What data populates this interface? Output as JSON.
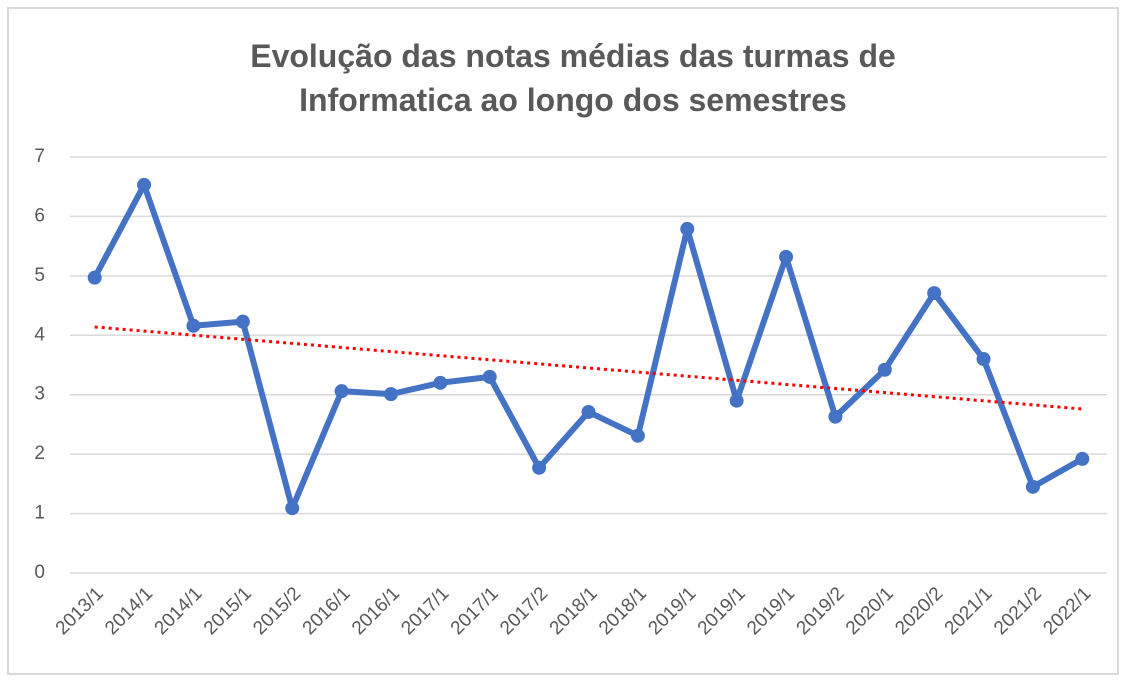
{
  "chart_data": {
    "type": "line",
    "title": [
      "Evolução das notas médias das turmas de",
      "Informatica ao longo dos semestres"
    ],
    "categories": [
      "2013/1",
      "2014/1",
      "2014/1",
      "2015/1",
      "2015/2",
      "2016/1",
      "2016/1",
      "2017/1",
      "2017/1",
      "2017/2",
      "2018/1",
      "2018/1",
      "2019/1",
      "2019/1",
      "2019/1",
      "2019/2",
      "2020/1",
      "2020/2",
      "2021/1",
      "2021/2",
      "2022/1"
    ],
    "series": [
      {
        "color": "#4472c4",
        "values": [
          4.97,
          6.53,
          4.16,
          4.23,
          1.09,
          3.06,
          3.01,
          3.2,
          3.3,
          1.77,
          2.71,
          2.31,
          5.79,
          2.9,
          5.32,
          2.63,
          3.42,
          4.71,
          3.6,
          1.45,
          1.92
        ]
      }
    ],
    "trendline": {
      "values": [
        4.14,
        2.76
      ],
      "color": "#ff0000",
      "style": "dotted"
    },
    "ylim": [
      0,
      7
    ],
    "yticks": [
      0,
      1,
      2,
      3,
      4,
      5,
      6,
      7
    ],
    "grid": true
  }
}
